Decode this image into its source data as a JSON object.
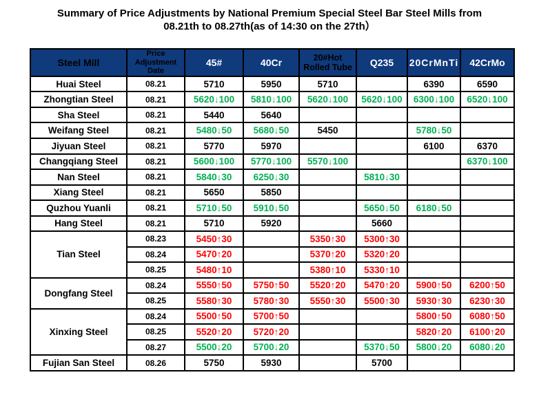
{
  "title": {
    "line1": "Summary of Price Adjustments by National Premium Special Steel Bar Steel Mills from",
    "line2": "08.21th to 08.27th(as of 14:30 on the 27th）"
  },
  "colors": {
    "header_bg": "#0f3a7c",
    "decrease_green": "#00b050",
    "increase_red": "#ff0000",
    "neutral_black": "#000000"
  },
  "table": {
    "columns": [
      {
        "label": "Steel Mill",
        "label_color": "black"
      },
      {
        "label": "Price Adjustment Date",
        "label_color": "black"
      },
      {
        "label": "45#",
        "label_color": "white"
      },
      {
        "label": "40Cr",
        "label_color": "white"
      },
      {
        "label": "20#Hot Rolled Tube",
        "label_color": "black"
      },
      {
        "label": "Q235",
        "label_color": "white"
      },
      {
        "label": "20CrMnTi",
        "label_color": "white"
      },
      {
        "label": "42CrMo",
        "label_color": "white"
      }
    ],
    "groups": [
      {
        "mill": "Huai Steel",
        "rows": [
          {
            "date": "08.21",
            "values": [
              "5710",
              "5950",
              "5710",
              "",
              "6390",
              "6590"
            ],
            "colors": [
              "black",
              "black",
              "black",
              "",
              "black",
              "black"
            ]
          }
        ]
      },
      {
        "mill": "Zhongtian Steel",
        "rows": [
          {
            "date": "08.21",
            "values": [
              "5620↓100",
              "5810↓100",
              "5620↓100",
              "5620↓100",
              "6300↓100",
              "6520↓100"
            ],
            "colors": [
              "green",
              "green",
              "green",
              "green",
              "green",
              "green"
            ]
          }
        ]
      },
      {
        "mill": "Sha Steel",
        "rows": [
          {
            "date": "08.21",
            "values": [
              "5440",
              "5640",
              "",
              "",
              "",
              ""
            ],
            "colors": [
              "black",
              "black",
              "",
              "",
              "",
              ""
            ]
          }
        ]
      },
      {
        "mill": "Weifang Steel",
        "rows": [
          {
            "date": "08.21",
            "values": [
              "5480↓50",
              "5680↓50",
              "5450",
              "",
              "5780↓50",
              ""
            ],
            "colors": [
              "green",
              "green",
              "black",
              "",
              "green",
              ""
            ]
          }
        ]
      },
      {
        "mill": "Jiyuan Steel",
        "rows": [
          {
            "date": "08.21",
            "values": [
              "5770",
              "5970",
              "",
              "",
              "6100",
              "6370"
            ],
            "colors": [
              "black",
              "black",
              "",
              "",
              "black",
              "black"
            ]
          }
        ]
      },
      {
        "mill": "Changqiang Steel",
        "rows": [
          {
            "date": "08.21",
            "values": [
              "5600↓100",
              "5770↓100",
              "5570↓100",
              "",
              "",
              "6370↓100"
            ],
            "colors": [
              "green",
              "green",
              "green",
              "",
              "",
              "green"
            ]
          }
        ]
      },
      {
        "mill": "Nan Steel",
        "rows": [
          {
            "date": "08.21",
            "values": [
              "5840↓30",
              "6250↓30",
              "",
              "5810↓30",
              "",
              ""
            ],
            "colors": [
              "green",
              "green",
              "",
              "green",
              "",
              ""
            ]
          }
        ]
      },
      {
        "mill": "Xiang Steel",
        "rows": [
          {
            "date": "08.21",
            "values": [
              "5650",
              "5850",
              "",
              "",
              "",
              ""
            ],
            "colors": [
              "black",
              "black",
              "",
              "",
              "",
              ""
            ]
          }
        ]
      },
      {
        "mill": "Quzhou Yuanli",
        "rows": [
          {
            "date": "08.21",
            "values": [
              "5710↓50",
              "5910↓50",
              "",
              "5650↓50",
              "6180↓50",
              ""
            ],
            "colors": [
              "green",
              "green",
              "",
              "green",
              "green",
              ""
            ]
          }
        ]
      },
      {
        "mill": "Hang Steel",
        "rows": [
          {
            "date": "08.21",
            "values": [
              "5710",
              "5920",
              "",
              "5660",
              "",
              ""
            ],
            "colors": [
              "black",
              "black",
              "",
              "black",
              "",
              ""
            ]
          }
        ]
      },
      {
        "mill": "Tian Steel",
        "rows": [
          {
            "date": "08.23",
            "values": [
              "5450↑30",
              "",
              "5350↑30",
              "5300↑30",
              "",
              ""
            ],
            "colors": [
              "red",
              "",
              "red",
              "red",
              "",
              ""
            ]
          },
          {
            "date": "08.24",
            "values": [
              "5470↑20",
              "",
              "5370↑20",
              "5320↑20",
              "",
              ""
            ],
            "colors": [
              "red",
              "",
              "red",
              "red",
              "",
              ""
            ]
          },
          {
            "date": "08.25",
            "values": [
              "5480↑10",
              "",
              "5380↑10",
              "5330↑10",
              "",
              ""
            ],
            "colors": [
              "red",
              "",
              "red",
              "red",
              "",
              ""
            ]
          }
        ]
      },
      {
        "mill": "Dongfang Steel",
        "rows": [
          {
            "date": "08.24",
            "values": [
              "5550↑50",
              "5750↑50",
              "5520↑20",
              "5470↑20",
              "5900↑50",
              "6200↑50"
            ],
            "colors": [
              "red",
              "red",
              "red",
              "red",
              "red",
              "red"
            ]
          },
          {
            "date": "08.25",
            "values": [
              "5580↑30",
              "5780↑30",
              "5550↑30",
              "5500↑30",
              "5930↑30",
              "6230↑30"
            ],
            "colors": [
              "red",
              "red",
              "red",
              "red",
              "red",
              "red"
            ]
          }
        ]
      },
      {
        "mill": "Xinxing Steel",
        "rows": [
          {
            "date": "08.24",
            "values": [
              "5500↑50",
              "5700↑50",
              "",
              "",
              "5800↑50",
              "6080↑50"
            ],
            "colors": [
              "red",
              "red",
              "",
              "",
              "red",
              "red"
            ]
          },
          {
            "date": "08.25",
            "values": [
              "5520↑20",
              "5720↑20",
              "",
              "",
              "5820↑20",
              "6100↑20"
            ],
            "colors": [
              "red",
              "red",
              "",
              "",
              "red",
              "red"
            ]
          },
          {
            "date": "08.27",
            "values": [
              "5500↓20",
              "5700↓20",
              "",
              "5370↓50",
              "5800↓20",
              "6080↓20"
            ],
            "colors": [
              "green",
              "green",
              "",
              "green",
              "green",
              "green"
            ]
          }
        ]
      },
      {
        "mill": "Fujian San Steel",
        "rows": [
          {
            "date": "08.26",
            "values": [
              "5750",
              "5930",
              "",
              "5700",
              "",
              ""
            ],
            "colors": [
              "black",
              "black",
              "",
              "black",
              "",
              ""
            ]
          }
        ]
      }
    ]
  }
}
